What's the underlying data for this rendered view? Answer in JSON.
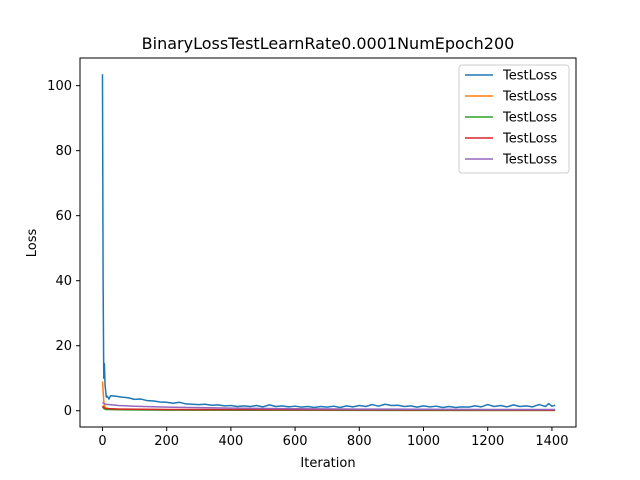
{
  "chart_data": {
    "type": "line",
    "title": "BinaryLossTestLearnRate0.0001NumEpoch200",
    "xlabel": "Iteration",
    "ylabel": "Loss",
    "xlim": [
      -70,
      1475
    ],
    "ylim": [
      -5,
      108.5
    ],
    "xticks": [
      0,
      200,
      400,
      600,
      800,
      1000,
      1200,
      1400
    ],
    "yticks": [
      0,
      20,
      40,
      60,
      80,
      100
    ],
    "legend_position": "top-right",
    "grid": false,
    "series": [
      {
        "name": "TestLoss",
        "color": "#1f77b4",
        "points": [
          [
            0,
            103.5
          ],
          [
            2,
            40
          ],
          [
            4,
            10
          ],
          [
            6,
            14.5
          ],
          [
            8,
            8
          ],
          [
            10,
            6
          ],
          [
            12,
            4.2
          ],
          [
            15,
            4.5
          ],
          [
            20,
            3.6
          ],
          [
            25,
            4.6
          ],
          [
            40,
            4.5
          ],
          [
            60,
            4.2
          ],
          [
            80,
            4.0
          ],
          [
            100,
            3.5
          ],
          [
            120,
            3.6
          ],
          [
            140,
            3.1
          ],
          [
            160,
            3.0
          ],
          [
            180,
            2.7
          ],
          [
            200,
            2.6
          ],
          [
            220,
            2.3
          ],
          [
            240,
            2.6
          ],
          [
            260,
            2.1
          ],
          [
            280,
            2.0
          ],
          [
            300,
            1.9
          ],
          [
            320,
            2.0
          ],
          [
            340,
            1.7
          ],
          [
            360,
            1.8
          ],
          [
            380,
            1.5
          ],
          [
            400,
            1.6
          ],
          [
            420,
            1.3
          ],
          [
            440,
            1.5
          ],
          [
            460,
            1.3
          ],
          [
            480,
            1.6
          ],
          [
            500,
            1.2
          ],
          [
            520,
            1.8
          ],
          [
            540,
            1.3
          ],
          [
            560,
            1.5
          ],
          [
            580,
            1.2
          ],
          [
            600,
            1.4
          ],
          [
            620,
            1.1
          ],
          [
            640,
            1.3
          ],
          [
            660,
            1.0
          ],
          [
            680,
            1.3
          ],
          [
            700,
            1.1
          ],
          [
            720,
            1.4
          ],
          [
            740,
            1.0
          ],
          [
            760,
            1.5
          ],
          [
            780,
            1.2
          ],
          [
            800,
            1.6
          ],
          [
            820,
            1.3
          ],
          [
            840,
            1.9
          ],
          [
            860,
            1.4
          ],
          [
            880,
            2.0
          ],
          [
            900,
            1.6
          ],
          [
            920,
            1.7
          ],
          [
            940,
            1.3
          ],
          [
            960,
            1.5
          ],
          [
            980,
            1.1
          ],
          [
            1000,
            1.5
          ],
          [
            1020,
            1.2
          ],
          [
            1040,
            1.4
          ],
          [
            1060,
            1.0
          ],
          [
            1080,
            1.3
          ],
          [
            1100,
            1.0
          ],
          [
            1120,
            1.2
          ],
          [
            1140,
            1.1
          ],
          [
            1160,
            1.5
          ],
          [
            1180,
            1.2
          ],
          [
            1200,
            1.9
          ],
          [
            1220,
            1.3
          ],
          [
            1240,
            1.6
          ],
          [
            1260,
            1.2
          ],
          [
            1280,
            1.8
          ],
          [
            1300,
            1.3
          ],
          [
            1320,
            1.5
          ],
          [
            1340,
            1.2
          ],
          [
            1360,
            1.9
          ],
          [
            1380,
            1.3
          ],
          [
            1390,
            2.2
          ],
          [
            1400,
            1.4
          ],
          [
            1410,
            1.7
          ]
        ]
      },
      {
        "name": "TestLoss",
        "color": "#ff7f0e",
        "points": [
          [
            0,
            9
          ],
          [
            2,
            6
          ],
          [
            4,
            3
          ],
          [
            6,
            1.5
          ],
          [
            10,
            0.9
          ],
          [
            20,
            0.6
          ],
          [
            50,
            0.5
          ],
          [
            100,
            0.4
          ],
          [
            200,
            0.3
          ],
          [
            400,
            0.2
          ],
          [
            800,
            0.15
          ],
          [
            1200,
            0.1
          ],
          [
            1410,
            0.1
          ]
        ]
      },
      {
        "name": "TestLoss",
        "color": "#2ca02c",
        "points": [
          [
            0,
            1.2
          ],
          [
            5,
            0.6
          ],
          [
            10,
            0.4
          ],
          [
            50,
            0.3
          ],
          [
            200,
            0.2
          ],
          [
            600,
            0.15
          ],
          [
            1000,
            0.1
          ],
          [
            1410,
            0.1
          ]
        ]
      },
      {
        "name": "TestLoss",
        "color": "#d62728",
        "points": [
          [
            0,
            1.5
          ],
          [
            5,
            0.9
          ],
          [
            10,
            0.7
          ],
          [
            50,
            0.5
          ],
          [
            200,
            0.4
          ],
          [
            600,
            0.3
          ],
          [
            1000,
            0.25
          ],
          [
            1410,
            0.2
          ]
        ]
      },
      {
        "name": "TestLoss",
        "color": "#9467bd",
        "points": [
          [
            0,
            2.5
          ],
          [
            10,
            2.0
          ],
          [
            50,
            1.6
          ],
          [
            100,
            1.4
          ],
          [
            200,
            1.1
          ],
          [
            400,
            0.8
          ],
          [
            600,
            0.6
          ],
          [
            800,
            0.5
          ],
          [
            1000,
            0.45
          ],
          [
            1200,
            0.4
          ],
          [
            1410,
            0.4
          ]
        ]
      }
    ]
  }
}
